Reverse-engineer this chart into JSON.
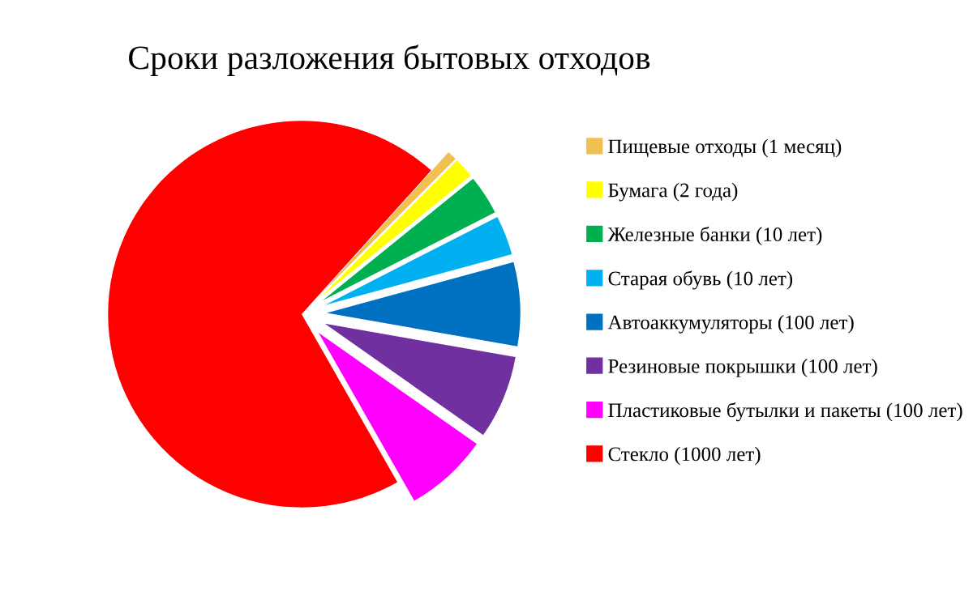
{
  "chart_data": {
    "type": "pie",
    "title": "Сроки разложения бытовых отходов",
    "categories": [
      "Пищевые отходы (1 месяц)",
      "Бумага (2 года)",
      "Железные банки (10 лет)",
      "Старая обувь (10 лет)",
      "Автоаккумуляторы (100 лет)",
      "Резиновые покрышки (100 лет)",
      "Пластиковые бутылки и пакеты (100 лет)",
      "Стекло (1000 лет)"
    ],
    "values": [
      0.8,
      1.7,
      3.3,
      3.3,
      7,
      7,
      7,
      69.9
    ],
    "colors": [
      "#f0c050",
      "#ffff00",
      "#00b050",
      "#00b0f0",
      "#0070c0",
      "#7030a0",
      "#ff00ff",
      "#ff0000"
    ],
    "legend": "right"
  }
}
